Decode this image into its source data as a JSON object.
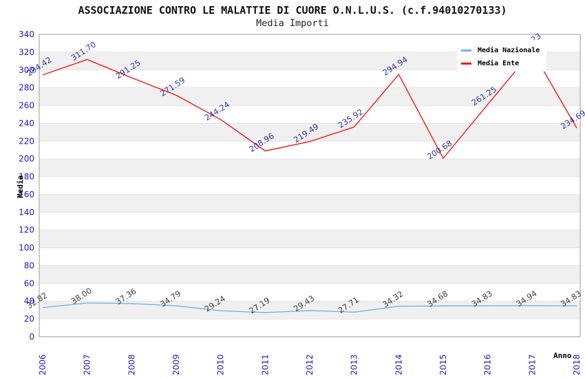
{
  "title": "ASSOCIAZIONE CONTRO LE MALATTIE DI CUORE O.N.L.U.S. (c.f.94010270133)",
  "subtitle": "Media Importi",
  "chart_data": {
    "type": "line",
    "x": [
      2006,
      2007,
      2008,
      2009,
      2010,
      2011,
      2012,
      2013,
      2014,
      2015,
      2016,
      2017,
      2018
    ],
    "xlabel": "Anno",
    "ylabel": "Media",
    "ylim": [
      0,
      340
    ],
    "ytick_step": 20,
    "grid": "alternating-horizontal-bands",
    "legend_position": "top-right-inside",
    "series": [
      {
        "name": "Media Nazionale",
        "color": "#79b2e2",
        "label_color": "#3f3f46",
        "values": [
          32.82,
          38.0,
          37.36,
          34.79,
          29.24,
          27.19,
          29.43,
          27.71,
          34.32,
          34.68,
          34.83,
          34.94,
          34.83
        ]
      },
      {
        "name": "Media Ente",
        "color": "#ff1111",
        "label_color": "#333399",
        "values": [
          294.42,
          311.7,
          291.25,
          271.59,
          244.24,
          208.96,
          219.49,
          235.92,
          294.94,
          200.68,
          261.25,
          321.23,
          234.69
        ]
      }
    ],
    "colors": {
      "tick_label": "#1a1acd",
      "band": "#f0f0f0",
      "gridline": "#e3e3e3",
      "plot_border": "#9a9a9a",
      "background": "#ffffff"
    }
  }
}
